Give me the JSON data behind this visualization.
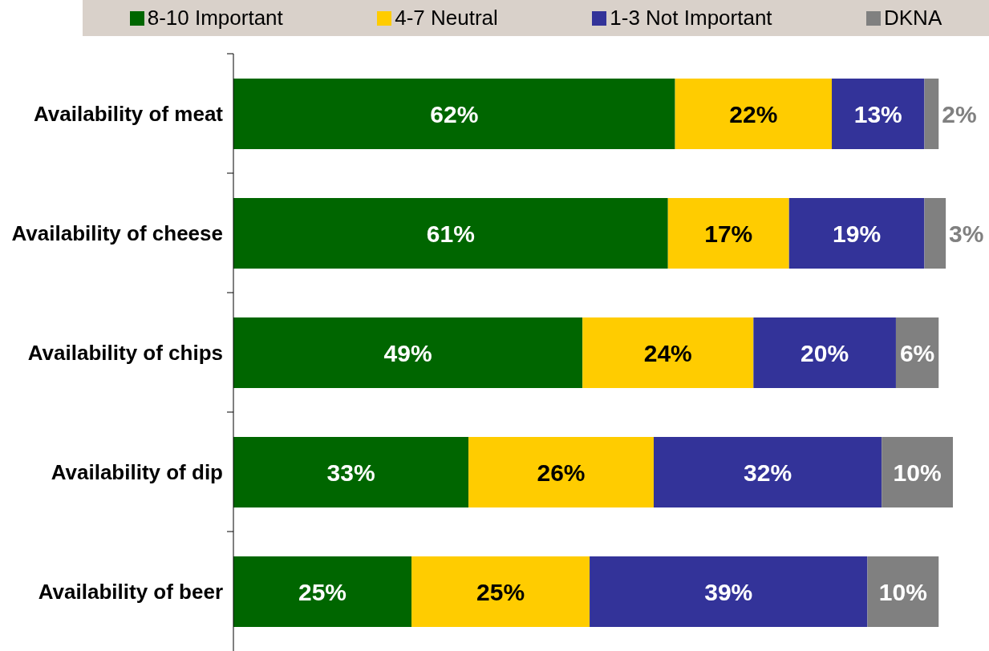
{
  "chart_data": {
    "type": "bar",
    "orientation": "horizontal",
    "stacked": true,
    "legend": "top",
    "categories": [
      "Availability of meat",
      "Availability of cheese",
      "Availability of chips",
      "Availability of dip",
      "Availability of beer"
    ],
    "series": [
      {
        "name": "8-10 Important",
        "color": "#006600",
        "values": [
          62,
          61,
          49,
          33,
          25
        ],
        "value_labels": [
          "62%",
          "61%",
          "49%",
          "33%",
          "25%"
        ]
      },
      {
        "name": "4-7 Neutral",
        "color": "#ffcc00",
        "values": [
          22,
          17,
          24,
          26,
          25
        ],
        "value_labels": [
          "22%",
          "17%",
          "24%",
          "26%",
          "25%"
        ]
      },
      {
        "name": "1-3 Not Important",
        "color": "#333399",
        "values": [
          13,
          19,
          20,
          32,
          39
        ],
        "value_labels": [
          "13%",
          "19%",
          "20%",
          "32%",
          "39%"
        ]
      },
      {
        "name": "DKNA",
        "color": "#808080",
        "values": [
          2,
          3,
          6,
          10,
          10
        ],
        "value_labels": [
          "2%",
          "3%",
          "6%",
          "10%",
          "10%"
        ]
      }
    ]
  }
}
